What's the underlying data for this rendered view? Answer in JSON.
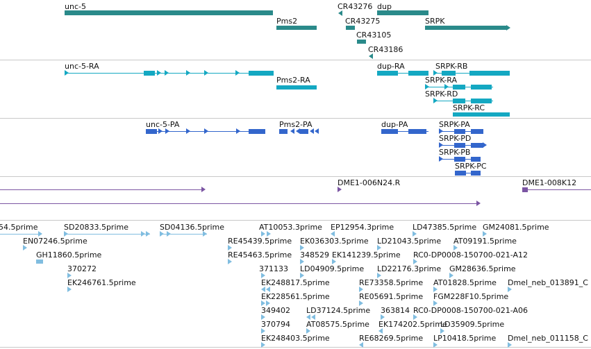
{
  "colors": {
    "gene": "#2a8a8a",
    "transcript": "#14a8c2",
    "protein": "#3366cc",
    "clone": "#7b55a3",
    "est": "#80bde0",
    "separator": "#c8c8c8"
  },
  "genes": [
    {
      "label": "unc-5"
    },
    {
      "label": "Pms2"
    },
    {
      "label": "CR43276"
    },
    {
      "label": "dup"
    },
    {
      "label": "CR43275"
    },
    {
      "label": "CR43105"
    },
    {
      "label": "CR43186"
    },
    {
      "label": "SRPK"
    }
  ],
  "transcripts": [
    {
      "label": "unc-5-RA"
    },
    {
      "label": "Pms2-RA"
    },
    {
      "label": "dup-RA"
    },
    {
      "label": "SRPK-RB"
    },
    {
      "label": "SRPK-RA"
    },
    {
      "label": "SRPK-RD"
    },
    {
      "label": "SRPK-RC"
    }
  ],
  "proteins": [
    {
      "label": "unc-5-PA"
    },
    {
      "label": "Pms2-PA"
    },
    {
      "label": "dup-PA"
    },
    {
      "label": "SRPK-PA"
    },
    {
      "label": "SRPK-PD"
    },
    {
      "label": "SRPK-PB"
    },
    {
      "label": "SRPK-PC"
    }
  ],
  "clones": [
    {
      "label": "DME1-006N24.R"
    },
    {
      "label": "DME1-008K12"
    }
  ],
  "ests": [
    {
      "label": "54.5prime"
    },
    {
      "label": "SD20833.5prime"
    },
    {
      "label": "SD04136.5prime"
    },
    {
      "label": "AT10053.3prime"
    },
    {
      "label": "EP12954.3prime"
    },
    {
      "label": "LD47385.5prime"
    },
    {
      "label": "GM24081.5prime"
    },
    {
      "label": "EN07246.5prime"
    },
    {
      "label": "RE45439.5prime"
    },
    {
      "label": "EK036303.5prime"
    },
    {
      "label": "LD21043.5prime"
    },
    {
      "label": "AT09191.5prime"
    },
    {
      "label": "GH11860.5prime"
    },
    {
      "label": "RE45463.5prime"
    },
    {
      "label": "348529"
    },
    {
      "label": "EK141239.5prime"
    },
    {
      "label": "RC0-DP0008-150700-021-A12"
    },
    {
      "label": "370272"
    },
    {
      "label": "371133"
    },
    {
      "label": "LD04909.5prime"
    },
    {
      "label": "LD22176.3prime"
    },
    {
      "label": "GM28636.5prime"
    },
    {
      "label": "EK246761.5prime"
    },
    {
      "label": "EK248817.5prime"
    },
    {
      "label": "RE73358.5prime"
    },
    {
      "label": "AT01828.5prime"
    },
    {
      "label": "Dmel_neb_013891_C"
    },
    {
      "label": "EK228561.5prime"
    },
    {
      "label": "RE05691.5prime"
    },
    {
      "label": "FGM228F10.5prime"
    },
    {
      "label": "349402"
    },
    {
      "label": "LD37124.5prime"
    },
    {
      "label": "363814"
    },
    {
      "label": "RC0-DP0008-150700-021-A06"
    },
    {
      "label": "370794"
    },
    {
      "label": "AT08575.5prime"
    },
    {
      "label": "EK174202.5prime"
    },
    {
      "label": "LD35909.5prime"
    },
    {
      "label": "EK248403.5prime"
    },
    {
      "label": "RE68269.5prime"
    },
    {
      "label": "LP10418.5prime"
    },
    {
      "label": "Dmel_neb_011158_C"
    }
  ]
}
